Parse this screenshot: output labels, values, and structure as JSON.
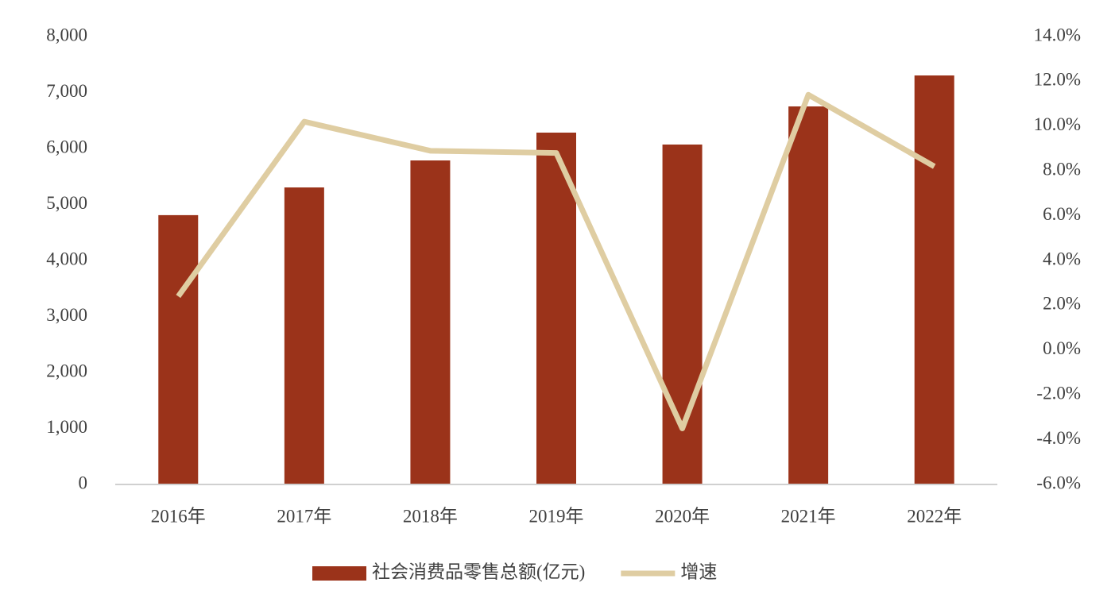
{
  "chart_data": {
    "type": "bar",
    "categories": [
      "2016年",
      "2017年",
      "2018年",
      "2019年",
      "2020年",
      "2021年",
      "2022年"
    ],
    "series": [
      {
        "name": "社会消费品零售总额(亿元)",
        "type": "bar",
        "color": "#9b331a",
        "values": [
          4810,
          5305,
          5787,
          6284,
          6071,
          6752,
          7305
        ]
      },
      {
        "name": "增速",
        "type": "line",
        "axis": "y2",
        "color": "#dfcda2",
        "values": [
          2.4,
          10.2,
          8.9,
          8.8,
          -3.5,
          11.4,
          8.2
        ]
      }
    ],
    "ylim": [
      0,
      8000
    ],
    "yticks": [
      0,
      {
        "value": 1000,
        "label": "1,000"
      },
      {
        "value": 2000,
        "label": "2,000"
      },
      {
        "value": 3000,
        "label": "3,000"
      },
      {
        "value": 4000,
        "label": "4,000"
      },
      {
        "value": 5000,
        "label": "5,000"
      },
      {
        "value": 6000,
        "label": "6,000"
      },
      {
        "value": 7000,
        "label": "7,000"
      },
      {
        "value": 8000,
        "label": "8,000"
      }
    ],
    "y2lim": [
      -6,
      14
    ],
    "y2ticks": [
      {
        "value": -6,
        "label": "-6.0%"
      },
      {
        "value": -4,
        "label": "-4.0%"
      },
      {
        "value": -2,
        "label": "-2.0%"
      },
      {
        "value": 0,
        "label": "0.0%"
      },
      {
        "value": 2,
        "label": "2.0%"
      },
      {
        "value": 4,
        "label": "4.0%"
      },
      {
        "value": 6,
        "label": "6.0%"
      },
      {
        "value": 8,
        "label": "8.0%"
      },
      {
        "value": 10,
        "label": "10.0%"
      },
      {
        "value": 12,
        "label": "12.0%"
      },
      {
        "value": 14,
        "label": "14.0%"
      }
    ],
    "grid": false,
    "legend": "bottom"
  }
}
